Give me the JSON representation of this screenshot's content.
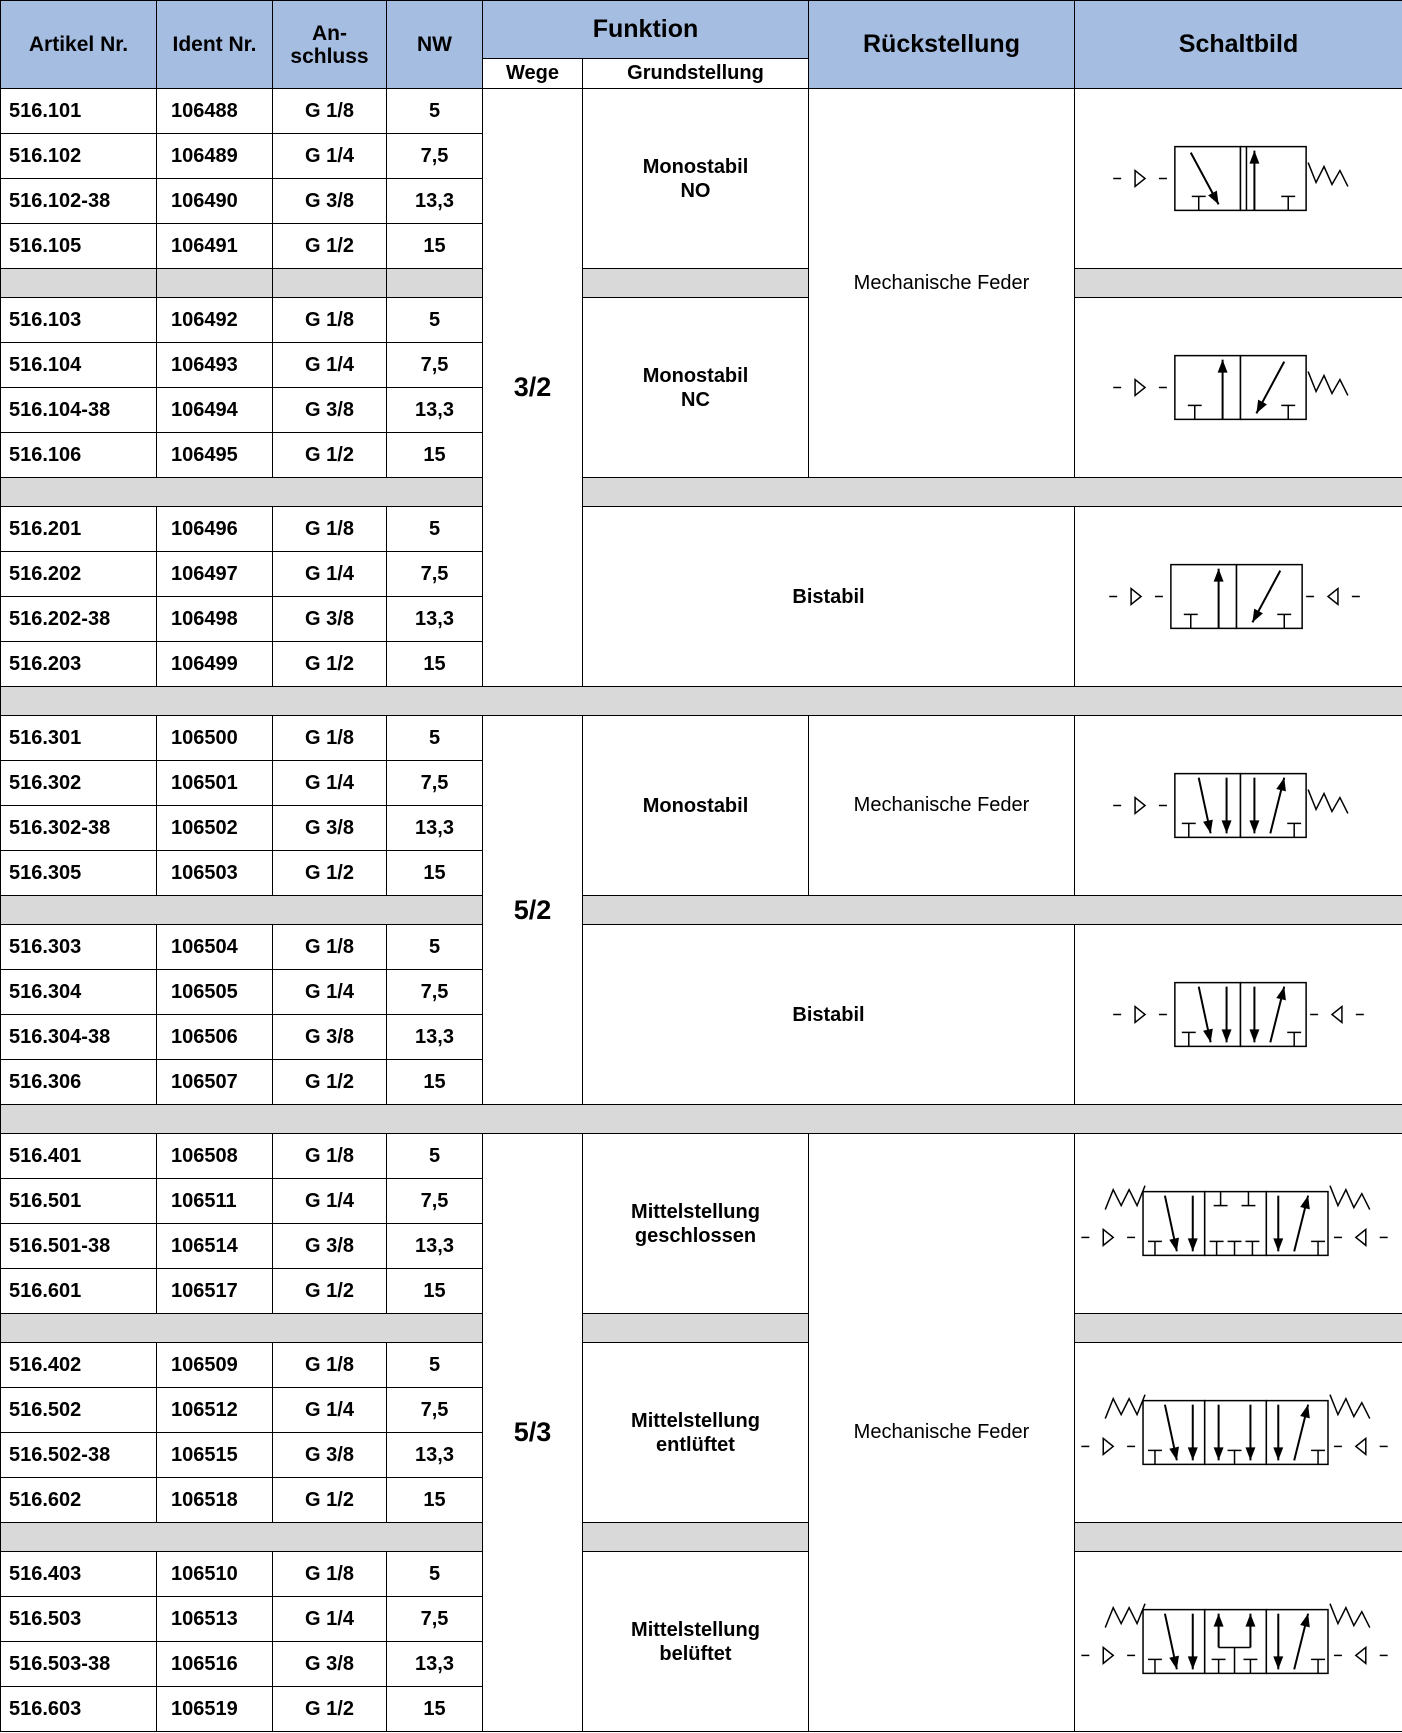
{
  "headers": {
    "artikel": "Artikel Nr.",
    "ident": "Ident Nr.",
    "anschluss": "An-\nschluss",
    "nw": "NW",
    "funktion": "Funktion",
    "wege": "Wege",
    "grundstellung": "Grundstellung",
    "rueckstellung": "Rückstellung",
    "schaltbild": "Schaltbild"
  },
  "rows": [
    {
      "artikel": "516.101",
      "ident": "106488",
      "anschluss": "G 1/8",
      "nw": "5"
    },
    {
      "artikel": "516.102",
      "ident": "106489",
      "anschluss": "G 1/4",
      "nw": "7,5"
    },
    {
      "artikel": "516.102-38",
      "ident": "106490",
      "anschluss": "G 3/8",
      "nw": "13,3"
    },
    {
      "artikel": "516.105",
      "ident": "106491",
      "anschluss": "G 1/2",
      "nw": "15"
    },
    {
      "artikel": "516.103",
      "ident": "106492",
      "anschluss": "G 1/8",
      "nw": "5"
    },
    {
      "artikel": "516.104",
      "ident": "106493",
      "anschluss": "G 1/4",
      "nw": "7,5"
    },
    {
      "artikel": "516.104-38",
      "ident": "106494",
      "anschluss": "G 3/8",
      "nw": "13,3"
    },
    {
      "artikel": "516.106",
      "ident": "106495",
      "anschluss": "G 1/2",
      "nw": "15"
    },
    {
      "artikel": "516.201",
      "ident": "106496",
      "anschluss": "G 1/8",
      "nw": "5"
    },
    {
      "artikel": "516.202",
      "ident": "106497",
      "anschluss": "G 1/4",
      "nw": "7,5"
    },
    {
      "artikel": "516.202-38",
      "ident": "106498",
      "anschluss": "G 3/8",
      "nw": "13,3"
    },
    {
      "artikel": "516.203",
      "ident": "106499",
      "anschluss": "G 1/2",
      "nw": "15"
    },
    {
      "artikel": "516.301",
      "ident": "106500",
      "anschluss": "G 1/8",
      "nw": "5"
    },
    {
      "artikel": "516.302",
      "ident": "106501",
      "anschluss": "G 1/4",
      "nw": "7,5"
    },
    {
      "artikel": "516.302-38",
      "ident": "106502",
      "anschluss": "G 3/8",
      "nw": "13,3"
    },
    {
      "artikel": "516.305",
      "ident": "106503",
      "anschluss": "G 1/2",
      "nw": "15"
    },
    {
      "artikel": "516.303",
      "ident": "106504",
      "anschluss": "G 1/8",
      "nw": "5"
    },
    {
      "artikel": "516.304",
      "ident": "106505",
      "anschluss": "G 1/4",
      "nw": "7,5"
    },
    {
      "artikel": "516.304-38",
      "ident": "106506",
      "anschluss": "G 3/8",
      "nw": "13,3"
    },
    {
      "artikel": "516.306",
      "ident": "106507",
      "anschluss": "G 1/2",
      "nw": "15"
    },
    {
      "artikel": "516.401",
      "ident": "106508",
      "anschluss": "G 1/8",
      "nw": "5"
    },
    {
      "artikel": "516.501",
      "ident": "106511",
      "anschluss": "G 1/4",
      "nw": "7,5"
    },
    {
      "artikel": "516.501-38",
      "ident": "106514",
      "anschluss": "G 3/8",
      "nw": "13,3"
    },
    {
      "artikel": "516.601",
      "ident": "106517",
      "anschluss": "G 1/2",
      "nw": "15"
    },
    {
      "artikel": "516.402",
      "ident": "106509",
      "anschluss": "G 1/8",
      "nw": "5"
    },
    {
      "artikel": "516.502",
      "ident": "106512",
      "anschluss": "G 1/4",
      "nw": "7,5"
    },
    {
      "artikel": "516.502-38",
      "ident": "106515",
      "anschluss": "G 3/8",
      "nw": "13,3"
    },
    {
      "artikel": "516.602",
      "ident": "106518",
      "anschluss": "G 1/2",
      "nw": "15"
    },
    {
      "artikel": "516.403",
      "ident": "106510",
      "anschluss": "G 1/8",
      "nw": "5"
    },
    {
      "artikel": "516.503",
      "ident": "106513",
      "anschluss": "G 1/4",
      "nw": "7,5"
    },
    {
      "artikel": "516.503-38",
      "ident": "106516",
      "anschluss": "G 3/8",
      "nw": "13,3"
    },
    {
      "artikel": "516.603",
      "ident": "106519",
      "anschluss": "G 1/2",
      "nw": "15"
    }
  ],
  "wege_groups": [
    "3/2",
    "5/2",
    "5/3"
  ],
  "grundstellung_groups": [
    "Monostabil\nNO",
    "Monostabil\nNC",
    "Bistabil",
    "Monostabil",
    "Bistabil",
    "Mittelstellung\ngeschlossen",
    "Mittelstellung\nentlüftet",
    "Mittelstellung\nbelüftet"
  ],
  "rueckstellung_groups": [
    "Mechanische Feder",
    "Mechanische Feder",
    "Mechanische Feder"
  ],
  "schaltbild_symbols": [
    "valve-3-2-monostable-no-symbol",
    "valve-3-2-monostable-nc-symbol",
    "valve-3-2-bistable-symbol",
    "valve-5-2-monostable-symbol",
    "valve-5-2-bistable-symbol",
    "valve-5-3-closed-center-symbol",
    "valve-5-3-exhaust-center-symbol",
    "valve-5-3-pressure-center-symbol"
  ],
  "colors": {
    "header_bg": "#a6bde2",
    "separator_bg": "#d9d9d9",
    "border": "#000000"
  }
}
